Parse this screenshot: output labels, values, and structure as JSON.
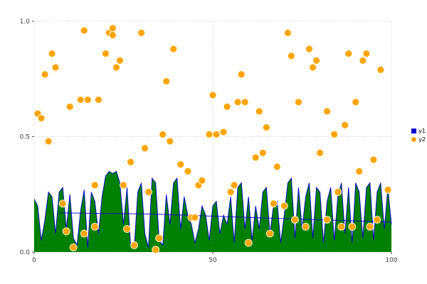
{
  "chart_data": {
    "type": "mixed",
    "title": "",
    "xlabel": "",
    "ylabel": "",
    "xlim": [
      0,
      100
    ],
    "ylim": [
      0,
      1
    ],
    "xticks": [
      0,
      50,
      100
    ],
    "yticks": [
      0,
      0.5,
      1
    ],
    "xtick_labels": [
      "0",
      "50",
      "100"
    ],
    "ytick_labels": [
      "0.0",
      "0.5",
      "1.0"
    ],
    "grid": true,
    "legend_position": "right",
    "series": [
      {
        "name": "y1",
        "type": "area",
        "color": "#008000",
        "line_color": "#0000cd",
        "x_range": [
          0,
          100
        ],
        "values": [
          0.23,
          0.2,
          0.05,
          0.14,
          0.26,
          0.24,
          0.08,
          0.26,
          0.28,
          0.1,
          0.25,
          0.06,
          0.03,
          0.18,
          0.27,
          0.02,
          0.26,
          0.22,
          0.08,
          0.24,
          0.33,
          0.35,
          0.34,
          0.35,
          0.3,
          0.12,
          0.28,
          0.03,
          0.02,
          0.26,
          0.3,
          0.08,
          0.02,
          0.32,
          0.3,
          0.05,
          0.03,
          0.25,
          0.12,
          0.3,
          0.32,
          0.1,
          0.24,
          0.16,
          0.12,
          0.04,
          0.1,
          0.2,
          0.16,
          0.05,
          0.2,
          0.22,
          0.08,
          0.16,
          0.12,
          0.24,
          0.04,
          0.28,
          0.3,
          0.1,
          0.24,
          0.05,
          0.2,
          0.1,
          0.26,
          0.28,
          0.08,
          0.2,
          0.22,
          0.04,
          0.16,
          0.3,
          0.32,
          0.06,
          0.28,
          0.1,
          0.24,
          0.3,
          0.06,
          0.28,
          0.26,
          0.04,
          0.22,
          0.28,
          0.05,
          0.24,
          0.3,
          0.08,
          0.28,
          0.04,
          0.3,
          0.26,
          0.06,
          0.28,
          0.3,
          0.05,
          0.26,
          0.3,
          0.1,
          0.28,
          0.12
        ]
      },
      {
        "name": "y2",
        "type": "scatter",
        "color": "#ffa500",
        "edge_color": "#ffffff",
        "points": [
          [
            1,
            0.6
          ],
          [
            2,
            0.58
          ],
          [
            3,
            0.77
          ],
          [
            4,
            0.48
          ],
          [
            5,
            0.86
          ],
          [
            6,
            0.8
          ],
          [
            8,
            0.21
          ],
          [
            9,
            0.09
          ],
          [
            10,
            0.63
          ],
          [
            11,
            0.02
          ],
          [
            13,
            0.66
          ],
          [
            14,
            0.96
          ],
          [
            14,
            0.08
          ],
          [
            15,
            0.66
          ],
          [
            17,
            0.29
          ],
          [
            17,
            0.11
          ],
          [
            18,
            0.66
          ],
          [
            20,
            0.86
          ],
          [
            21,
            0.95
          ],
          [
            22,
            0.97
          ],
          [
            22,
            0.94
          ],
          [
            23,
            0.8
          ],
          [
            24,
            0.83
          ],
          [
            25,
            0.29
          ],
          [
            26,
            0.1
          ],
          [
            27,
            0.39
          ],
          [
            28,
            0.03
          ],
          [
            30,
            0.95
          ],
          [
            31,
            0.45
          ],
          [
            32,
            0.26
          ],
          [
            34,
            0.01
          ],
          [
            35,
            0.06
          ],
          [
            36,
            0.51
          ],
          [
            37,
            0.74
          ],
          [
            38,
            0.48
          ],
          [
            39,
            0.88
          ],
          [
            41,
            0.38
          ],
          [
            43,
            0.35
          ],
          [
            44,
            0.15
          ],
          [
            45,
            0.15
          ],
          [
            46,
            0.29
          ],
          [
            47,
            0.31
          ],
          [
            49,
            0.51
          ],
          [
            50,
            0.68
          ],
          [
            51,
            0.51
          ],
          [
            53,
            0.52
          ],
          [
            54,
            0.63
          ],
          [
            55,
            0.26
          ],
          [
            56,
            0.29
          ],
          [
            57,
            0.65
          ],
          [
            58,
            0.77
          ],
          [
            59,
            0.65
          ],
          [
            60,
            0.04
          ],
          [
            62,
            0.41
          ],
          [
            63,
            0.61
          ],
          [
            64,
            0.43
          ],
          [
            65,
            0.54
          ],
          [
            66,
            0.08
          ],
          [
            67,
            0.21
          ],
          [
            68,
            0.37
          ],
          [
            70,
            0.2
          ],
          [
            71,
            0.95
          ],
          [
            72,
            0.85
          ],
          [
            73,
            0.14
          ],
          [
            74,
            0.65
          ],
          [
            76,
            0.11
          ],
          [
            77,
            0.88
          ],
          [
            78,
            0.8
          ],
          [
            79,
            0.83
          ],
          [
            80,
            0.43
          ],
          [
            82,
            0.14
          ],
          [
            82,
            0.61
          ],
          [
            84,
            0.51
          ],
          [
            85,
            0.26
          ],
          [
            86,
            0.11
          ],
          [
            87,
            0.55
          ],
          [
            88,
            0.86
          ],
          [
            89,
            0.11
          ],
          [
            90,
            0.65
          ],
          [
            91,
            0.35
          ],
          [
            92,
            0.83
          ],
          [
            93,
            0.86
          ],
          [
            94,
            0.11
          ],
          [
            95,
            0.4
          ],
          [
            96,
            0.14
          ],
          [
            97,
            0.79
          ],
          [
            99,
            0.27
          ]
        ]
      }
    ],
    "overlay_line": {
      "color": "#0000cd",
      "points": [
        [
          7,
          0.17
        ],
        [
          33,
          0.165
        ],
        [
          60,
          0.15
        ],
        [
          100,
          0.13
        ]
      ]
    }
  },
  "legend": {
    "y1_label": "y1",
    "y2_label": "y2"
  }
}
